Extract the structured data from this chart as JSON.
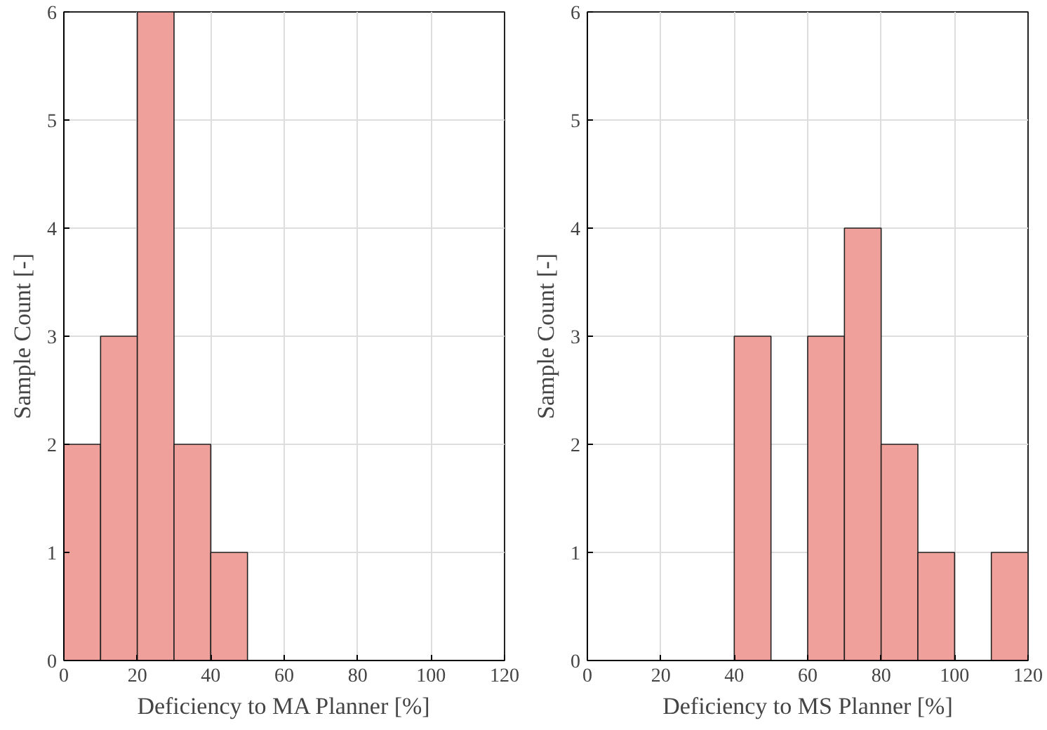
{
  "chart_data": [
    {
      "type": "histogram",
      "xlabel": "Deficiency to MA Planner [%]",
      "ylabel": "Sample Count [-]",
      "bins": [
        0,
        10,
        20,
        30,
        40,
        50
      ],
      "values": [
        2,
        3,
        6,
        2,
        1
      ],
      "color": "#f0a09a",
      "xlim": [
        0,
        120
      ],
      "ylim": [
        0,
        6
      ],
      "xticks": [
        0,
        20,
        40,
        60,
        80,
        100,
        120
      ],
      "yticks": [
        0,
        1,
        2,
        3,
        4,
        5,
        6
      ],
      "grid": true
    },
    {
      "type": "histogram",
      "xlabel": "Deficiency to MS Planner [%]",
      "ylabel": "Sample Count [-]",
      "bins": [
        40,
        50,
        60,
        70,
        80,
        90,
        100,
        110,
        120
      ],
      "values": [
        3,
        0,
        3,
        4,
        2,
        1,
        0,
        1
      ],
      "color": "#f0a09a",
      "xlim": [
        0,
        120
      ],
      "ylim": [
        0,
        6
      ],
      "xticks": [
        0,
        20,
        40,
        60,
        80,
        100,
        120
      ],
      "yticks": [
        0,
        1,
        2,
        3,
        4,
        5,
        6
      ],
      "grid": true
    }
  ]
}
